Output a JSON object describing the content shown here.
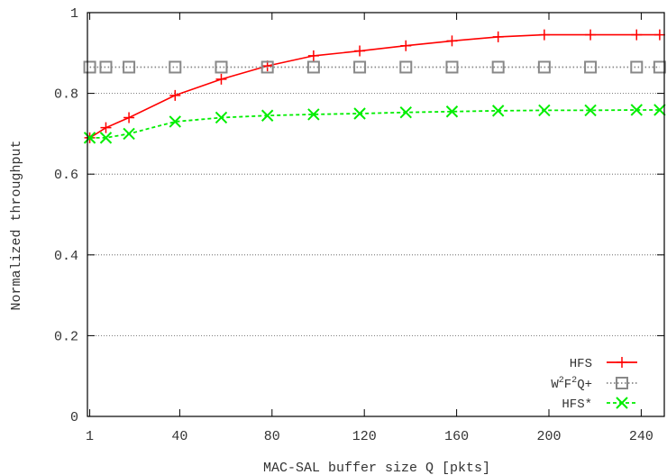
{
  "chart_data": {
    "type": "line",
    "title": "",
    "xlabel": "MAC-SAL buffer size Q [pkts]",
    "ylabel": "Normalized throughput",
    "xlim": [
      0,
      250
    ],
    "ylim": [
      0,
      1
    ],
    "xticks": [
      1,
      40,
      80,
      120,
      160,
      200,
      240
    ],
    "xtick_labels": [
      "1",
      "40",
      "80",
      "120",
      "160",
      "200",
      "240"
    ],
    "yticks": [
      0,
      0.2,
      0.4,
      0.6,
      0.8,
      1
    ],
    "ytick_labels": [
      "0",
      "0.2",
      "0.4",
      "0.6",
      "0.8",
      "1"
    ],
    "grid": "horizontal dotted",
    "legend_position": "bottom-right",
    "series": [
      {
        "name": "HFS",
        "color": "#ff0000",
        "marker": "plus",
        "line": "solid",
        "x": [
          1,
          8,
          18,
          38,
          58,
          78,
          98,
          118,
          138,
          158,
          178,
          198,
          218,
          238,
          248
        ],
        "y": [
          0.69,
          0.715,
          0.74,
          0.795,
          0.835,
          0.868,
          0.893,
          0.905,
          0.918,
          0.93,
          0.94,
          0.945,
          0.945,
          0.945,
          0.945
        ]
      },
      {
        "name_parts": [
          "W",
          "2",
          "F",
          "2",
          "Q+"
        ],
        "color": "#888888",
        "marker": "open-square",
        "line": "dotted",
        "x": [
          1,
          8,
          18,
          38,
          58,
          78,
          98,
          118,
          138,
          158,
          178,
          198,
          218,
          238,
          248
        ],
        "y": [
          0.865,
          0.865,
          0.865,
          0.865,
          0.865,
          0.865,
          0.865,
          0.865,
          0.865,
          0.865,
          0.865,
          0.865,
          0.865,
          0.865,
          0.865
        ]
      },
      {
        "name": "HFS*",
        "color": "#00ee00",
        "marker": "cross",
        "line": "dashed",
        "x": [
          1,
          8,
          18,
          38,
          58,
          78,
          98,
          118,
          138,
          158,
          178,
          198,
          218,
          238,
          248
        ],
        "y": [
          0.69,
          0.69,
          0.7,
          0.73,
          0.74,
          0.745,
          0.748,
          0.75,
          0.753,
          0.755,
          0.757,
          0.758,
          0.758,
          0.759,
          0.759
        ]
      }
    ]
  }
}
